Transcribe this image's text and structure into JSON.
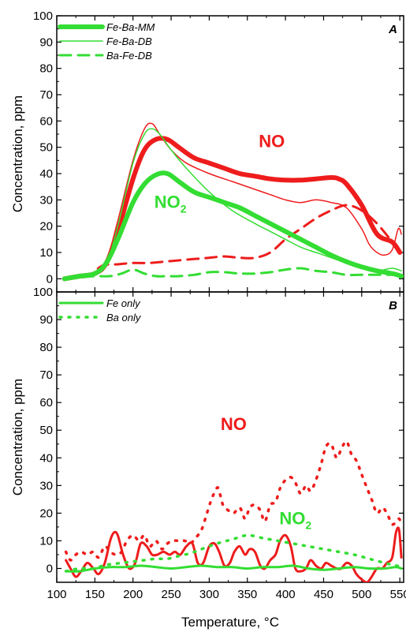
{
  "colors": {
    "red": "#ee1c1c",
    "green": "#33dd33"
  },
  "chart_data": [
    {
      "type": "line",
      "panel_label": "A",
      "ylabel": "Concentration, ppm",
      "xlim": [
        100,
        555
      ],
      "ylim": [
        -5,
        100
      ],
      "yticks": [
        "0",
        "10",
        "20",
        "30",
        "40",
        "50",
        "60",
        "70",
        "80",
        "90",
        "100"
      ],
      "legend": [
        {
          "label": "Fe-Ba-MM",
          "style": "thick"
        },
        {
          "label": "Fe-Ba-DB",
          "style": "thin"
        },
        {
          "label": "Ba-Fe-DB",
          "style": "dashed"
        }
      ],
      "annotations": [
        {
          "text": "NO",
          "sub": "",
          "color": "red",
          "x": 365,
          "y": 50
        },
        {
          "text": "NO",
          "sub": "2",
          "color": "green",
          "x": 228,
          "y": 27
        }
      ],
      "series": [
        {
          "name": "Fe-Ba-MM NO",
          "color": "red",
          "style": "thick",
          "x": [
            110,
            130,
            150,
            165,
            180,
            200,
            215,
            230,
            245,
            260,
            280,
            300,
            320,
            340,
            360,
            380,
            400,
            420,
            440,
            460,
            470,
            480,
            500,
            520,
            540,
            550
          ],
          "y": [
            0,
            1,
            2,
            6,
            18,
            38,
            49,
            53,
            53,
            50,
            46,
            44,
            42,
            40,
            39,
            38,
            37.5,
            37.5,
            38,
            38.5,
            38,
            36,
            28,
            17,
            14,
            10
          ]
        },
        {
          "name": "Fe-Ba-DB NO",
          "color": "red",
          "style": "thin",
          "x": [
            110,
            130,
            150,
            165,
            180,
            200,
            215,
            225,
            235,
            250,
            270,
            300,
            330,
            360,
            380,
            400,
            420,
            440,
            460,
            480,
            500,
            510,
            520,
            530,
            540,
            548,
            552
          ],
          "y": [
            0,
            1,
            2,
            7,
            22,
            45,
            57,
            59,
            55,
            49,
            44,
            40,
            37,
            34,
            32,
            30,
            29,
            30,
            29,
            27,
            19,
            13,
            10,
            9,
            11,
            19,
            17
          ]
        },
        {
          "name": "Ba-Fe-DB NO",
          "color": "red",
          "style": "dashed",
          "x": [
            110,
            140,
            160,
            180,
            200,
            220,
            240,
            260,
            280,
            300,
            320,
            340,
            360,
            380,
            400,
            420,
            440,
            460,
            480,
            500,
            520,
            540,
            550
          ],
          "y": [
            0,
            1,
            5,
            5.5,
            6,
            6,
            6.5,
            7,
            7.5,
            8,
            8.5,
            8,
            8,
            10,
            15,
            19,
            23,
            26,
            28,
            26,
            21,
            14,
            10
          ]
        },
        {
          "name": "Fe-Ba-MM NO2",
          "color": "green",
          "style": "thick",
          "x": [
            110,
            130,
            150,
            165,
            180,
            200,
            215,
            230,
            245,
            260,
            280,
            300,
            320,
            340,
            360,
            380,
            400,
            420,
            440,
            460,
            480,
            500,
            520,
            540,
            552
          ],
          "y": [
            0,
            1,
            2,
            6,
            15,
            29,
            36,
            39.5,
            40,
            37,
            33,
            31,
            29,
            27,
            24,
            21,
            18,
            15,
            12,
            9,
            6.5,
            4.5,
            3,
            2,
            1
          ]
        },
        {
          "name": "Fe-Ba-DB NO2",
          "color": "green",
          "style": "thin",
          "x": [
            110,
            130,
            150,
            165,
            180,
            200,
            215,
            225,
            235,
            250,
            270,
            300,
            330,
            360,
            380,
            400,
            420,
            440,
            460,
            480,
            500,
            520,
            540,
            552
          ],
          "y": [
            0,
            1,
            2,
            6,
            20,
            44,
            55,
            57,
            55,
            49,
            42,
            33,
            26,
            21,
            18,
            15,
            12,
            10,
            8,
            6,
            4,
            3,
            4,
            3
          ]
        },
        {
          "name": "Ba-Fe-DB NO2",
          "color": "green",
          "style": "dashed",
          "x": [
            110,
            130,
            150,
            170,
            185,
            200,
            215,
            230,
            245,
            260,
            280,
            300,
            320,
            340,
            360,
            380,
            400,
            420,
            440,
            460,
            480,
            500,
            520,
            540,
            552
          ],
          "y": [
            0,
            0.5,
            1,
            1,
            2,
            3.5,
            2,
            1,
            1,
            1,
            1.5,
            2.5,
            2.5,
            2,
            2,
            2.5,
            3.5,
            4,
            3,
            2.5,
            1.5,
            1.5,
            1.5,
            1.5,
            1
          ]
        }
      ]
    },
    {
      "type": "line",
      "panel_label": "B",
      "ylabel": "Concentration, ppm",
      "xlabel": "Temperature, °C",
      "xlim": [
        100,
        555
      ],
      "ylim": [
        -5,
        100
      ],
      "xticks": [
        "100",
        "150",
        "200",
        "250",
        "300",
        "350",
        "400",
        "450",
        "500",
        "550"
      ],
      "yticks": [
        "0",
        "10",
        "20",
        "30",
        "40",
        "50",
        "60",
        "70",
        "80",
        "90",
        "100"
      ],
      "legend": [
        {
          "label": "Fe only",
          "style": "solid"
        },
        {
          "label": "Ba only",
          "style": "dotted"
        }
      ],
      "annotations": [
        {
          "text": "NO",
          "sub": "",
          "color": "red",
          "x": 315,
          "y": 50
        },
        {
          "text": "NO",
          "sub": "2",
          "color": "green",
          "x": 392,
          "y": 16
        }
      ],
      "series": [
        {
          "name": "Fe only NO",
          "color": "red",
          "style": "solid",
          "x": [
            112,
            118,
            125,
            132,
            140,
            148,
            155,
            163,
            170,
            175,
            180,
            187,
            195,
            203,
            210,
            218,
            225,
            232,
            240,
            248,
            255,
            262,
            270,
            278,
            285,
            292,
            300,
            307,
            313,
            320,
            327,
            333,
            340,
            347,
            353,
            360,
            367,
            373,
            380,
            387,
            393,
            400,
            407,
            413,
            420,
            427,
            433,
            440,
            447,
            453,
            460,
            467,
            473,
            480,
            487,
            493,
            500,
            507,
            513,
            520,
            527,
            533,
            540,
            545,
            549,
            552
          ],
          "y": [
            3,
            0,
            -3,
            -1,
            2,
            0,
            -2,
            2,
            10,
            13,
            12,
            5,
            0,
            2,
            9,
            8,
            5,
            5,
            6,
            5,
            6,
            5,
            8,
            9,
            2,
            2,
            8,
            9,
            6,
            1,
            2,
            6,
            8,
            5,
            7,
            6,
            1,
            0,
            3,
            5,
            10,
            12,
            8,
            0,
            -1,
            0,
            3,
            1,
            0,
            2,
            1,
            0,
            0,
            2,
            1,
            -2,
            -4,
            -5,
            -3,
            0,
            0,
            2,
            4,
            13,
            14,
            4
          ]
        },
        {
          "name": "Ba only NO",
          "color": "red",
          "style": "dotted",
          "x": [
            112,
            118,
            125,
            132,
            140,
            148,
            155,
            163,
            170,
            178,
            185,
            192,
            200,
            208,
            215,
            222,
            230,
            238,
            245,
            252,
            260,
            268,
            275,
            282,
            290,
            297,
            303,
            308,
            312,
            318,
            325,
            332,
            340,
            347,
            353,
            360,
            367,
            373,
            380,
            387,
            393,
            400,
            407,
            413,
            420,
            427,
            433,
            440,
            447,
            453,
            460,
            467,
            473,
            480,
            487,
            493,
            500,
            507,
            513,
            520,
            527,
            533,
            540,
            545,
            549,
            552
          ],
          "y": [
            6,
            3,
            5,
            6,
            5,
            6,
            4,
            8,
            6,
            5,
            6,
            10,
            12,
            10,
            12,
            8,
            10,
            7,
            9,
            10,
            10,
            10,
            9,
            11,
            14,
            20,
            25,
            28,
            29,
            23,
            21,
            20,
            22,
            18,
            22,
            23,
            21,
            17,
            23,
            24,
            29,
            32,
            33,
            31,
            27,
            30,
            28,
            32,
            38,
            44,
            45,
            40,
            43,
            46,
            41,
            39,
            34,
            29,
            25,
            20,
            22,
            20,
            16,
            17,
            18,
            16
          ]
        },
        {
          "name": "Fe only NO2",
          "color": "green",
          "style": "solid",
          "x": [
            112,
            130,
            150,
            170,
            190,
            210,
            230,
            250,
            270,
            290,
            310,
            330,
            350,
            370,
            390,
            410,
            430,
            450,
            470,
            490,
            510,
            530,
            545,
            552
          ],
          "y": [
            -1,
            -1,
            0,
            0.5,
            0.5,
            1,
            0.5,
            0,
            0.5,
            1,
            0.5,
            0.5,
            0,
            0.5,
            0.5,
            1,
            0,
            -0.5,
            0,
            0.5,
            0,
            0,
            0.5,
            0
          ]
        },
        {
          "name": "Ba only NO2",
          "color": "green",
          "style": "dotted",
          "x": [
            112,
            120,
            130,
            140,
            150,
            160,
            170,
            185,
            200,
            215,
            230,
            245,
            260,
            275,
            290,
            310,
            330,
            350,
            370,
            390,
            410,
            430,
            450,
            470,
            490,
            510,
            530,
            545,
            552
          ],
          "y": [
            -1,
            -0.5,
            0,
            0,
            0,
            1,
            1.5,
            2,
            2.5,
            3,
            3.5,
            3.5,
            4.5,
            5.5,
            7,
            9,
            10.5,
            12,
            11,
            10,
            9,
            8,
            7,
            6,
            5,
            3.5,
            2,
            1,
            1
          ]
        }
      ]
    }
  ]
}
